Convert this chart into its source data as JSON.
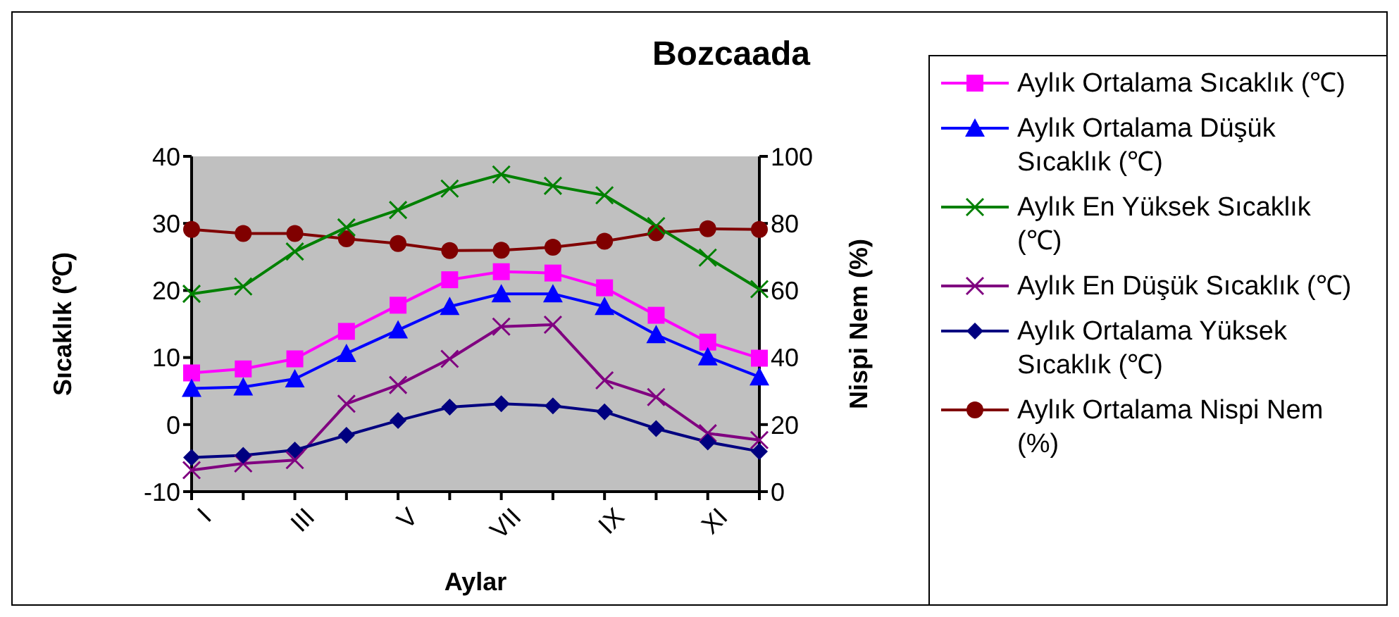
{
  "chart_data": {
    "type": "line",
    "title": "Bozcaada",
    "xlabel": "Aylar",
    "ylabel": "Sıcaklık (℃)",
    "y2label": "Nispi Nem (%)",
    "categories": [
      "I",
      null,
      "III",
      null,
      "V",
      null,
      "VII",
      null,
      "IX",
      null,
      "XI",
      null
    ],
    "ylim": [
      -10,
      40
    ],
    "yticks": [
      -10,
      0,
      10,
      20,
      30,
      40
    ],
    "y2lim": [
      0,
      100
    ],
    "y2ticks": [
      0,
      20,
      40,
      60,
      80,
      100
    ],
    "grid": false,
    "legend": "right",
    "line_style": "solid",
    "series": [
      {
        "name": "Aylık Ortalama Sıcaklık (℃)",
        "color": "#ff00ff",
        "marker": "square",
        "values": [
          7.7,
          8.3,
          9.8,
          13.9,
          17.8,
          21.6,
          22.8,
          22.6,
          20.4,
          16.3,
          12.3,
          9.9
        ]
      },
      {
        "name": "Aylık Ortalama Düşük Sıcaklık (℃)",
        "color": "#0000ff",
        "marker": "triangle",
        "values": [
          5.4,
          5.6,
          6.8,
          10.6,
          14.1,
          17.6,
          19.5,
          19.5,
          17.6,
          13.4,
          10.1,
          7.1
        ]
      },
      {
        "name": "Aylık En Yüksek Sıcaklık (℃)",
        "color": "#008000",
        "marker": "cross",
        "values": [
          19.5,
          20.6,
          25.8,
          29.4,
          32.0,
          35.2,
          37.3,
          35.6,
          34.2,
          29.6,
          24.9,
          20.2
        ]
      },
      {
        "name": "Aylık En Düşük Sıcaklık (℃)",
        "color": "#800080",
        "marker": "cross",
        "values": [
          -6.8,
          -5.8,
          -5.3,
          3.1,
          5.9,
          9.8,
          14.6,
          14.9,
          6.6,
          4.1,
          -1.3,
          -2.3
        ]
      },
      {
        "name": "Aylık Ortalama Yüksek Sıcaklık (℃)",
        "color": "#000080",
        "marker": "diamond",
        "values": [
          -4.9,
          -4.6,
          -3.8,
          -1.6,
          0.6,
          2.6,
          3.1,
          2.8,
          1.9,
          -0.6,
          -2.6,
          -4.0
        ]
      },
      {
        "name": "Aylık Ortalama Nispi Nem (%)",
        "color": "#800000",
        "marker": "circle",
        "axis": "y2",
        "values": [
          78.2,
          77,
          77,
          75.4,
          74,
          71.9,
          72,
          72.9,
          74.7,
          77.2,
          78.4,
          78.2
        ]
      }
    ]
  }
}
